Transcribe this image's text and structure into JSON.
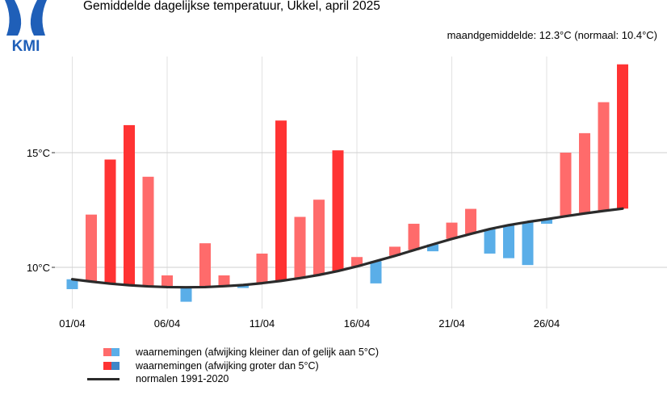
{
  "header": {
    "title": "Gemiddelde dagelijkse temperatuur, Ukkel, april 2025",
    "subtitle": "maandgemiddelde: 12.3°C (normaal: 10.4°C)"
  },
  "logo": {
    "text": "KMI",
    "color": "#1f5fb8"
  },
  "colors": {
    "warm_small": "#ff6b6b",
    "warm_large": "#ff3333",
    "cold_small": "#5aaee8",
    "cold_large": "#3f86c8",
    "normal_line": "#2b2b2b",
    "grid": "#e2e2e2"
  },
  "legend": [
    {
      "label": "waarnemingen (afwijking kleiner dan of gelijk aan 5°C)"
    },
    {
      "label": "waarnemingen (afwijking groter dan 5°C)"
    },
    {
      "label": "normalen 1991-2020"
    }
  ],
  "chart_data": {
    "type": "bar",
    "title": "Gemiddelde dagelijkse temperatuur, Ukkel, april 2025",
    "xlabel": "",
    "ylabel": "",
    "ylim": [
      8.0,
      19.0
    ],
    "yticks": [
      10,
      15
    ],
    "ytick_labels": [
      "10°C",
      "15°C"
    ],
    "xticks": [
      1,
      6,
      11,
      16,
      21,
      26
    ],
    "xtick_labels": [
      "01/04",
      "06/04",
      "11/04",
      "16/04",
      "21/04",
      "26/04"
    ],
    "days": [
      1,
      2,
      3,
      4,
      5,
      6,
      7,
      8,
      9,
      10,
      11,
      12,
      13,
      14,
      15,
      16,
      17,
      18,
      19,
      20,
      21,
      22,
      23,
      24,
      25,
      26,
      27,
      28,
      29,
      30
    ],
    "observed": [
      9.05,
      12.3,
      14.7,
      16.2,
      13.95,
      9.65,
      8.5,
      11.05,
      9.65,
      9.1,
      10.6,
      16.4,
      12.2,
      12.95,
      15.1,
      10.45,
      9.3,
      10.9,
      11.9,
      10.7,
      11.95,
      12.55,
      10.6,
      10.4,
      10.1,
      11.9,
      15.0,
      15.85,
      17.2,
      18.85
    ],
    "normal": [
      9.48,
      9.38,
      9.29,
      9.22,
      9.17,
      9.14,
      9.13,
      9.14,
      9.18,
      9.23,
      9.31,
      9.41,
      9.53,
      9.67,
      9.84,
      10.04,
      10.27,
      10.5,
      10.75,
      11.0,
      11.24,
      11.46,
      11.67,
      11.84,
      11.98,
      12.1,
      12.23,
      12.35,
      12.46,
      12.56
    ],
    "threshold": 5,
    "series": [
      {
        "name": "waarnemingen (afwijking kleiner dan of gelijk aan 5°C)"
      },
      {
        "name": "waarnemingen (afwijking groter dan 5°C)"
      },
      {
        "name": "normalen 1991-2020"
      }
    ]
  }
}
